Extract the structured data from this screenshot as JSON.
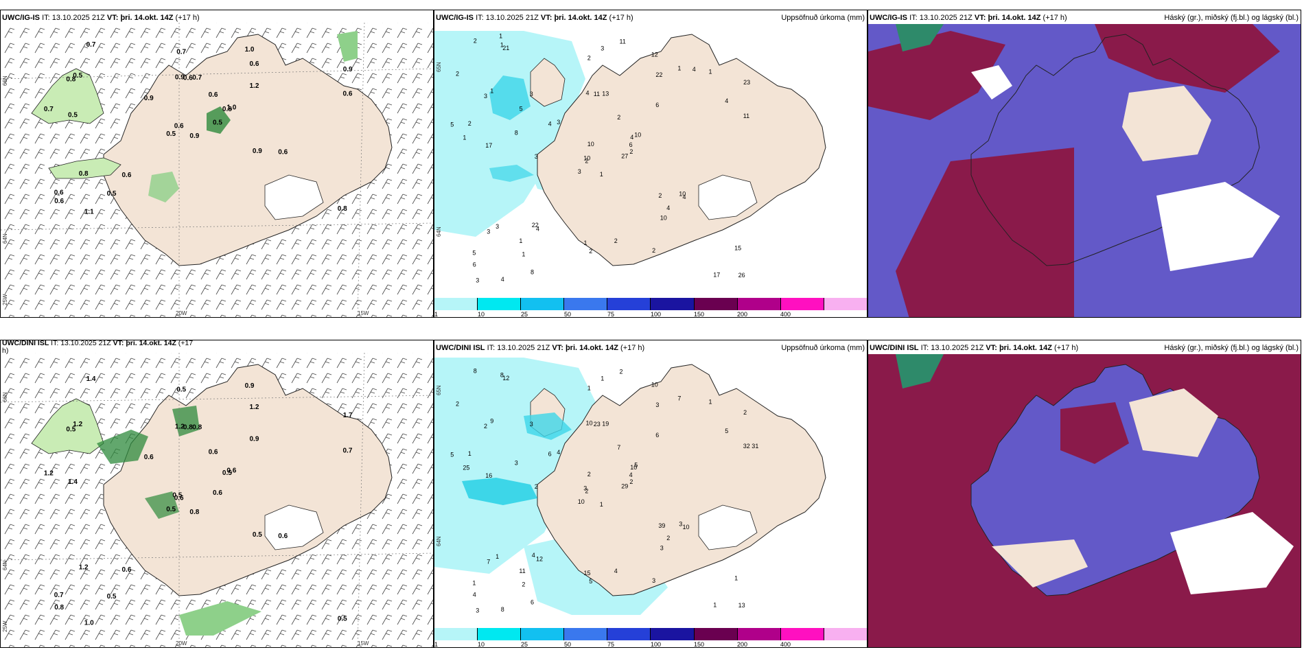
{
  "colors": {
    "land": "#f3e4d6",
    "ice": "#ffffff",
    "green_light": "#c9ecb5",
    "green_mid": "#8ed08a",
    "green_dark": "#2e8a3c",
    "precip_light": "#b6f5f8",
    "precip_mid": "#3dd6e8",
    "cloud_high": "#8a1a4a",
    "cloud_mid": "#6359c8",
    "cloud_low": "#d0405a"
  },
  "panels": {
    "p1": {
      "model": "UWC/IG-IS",
      "it_label": "IT:",
      "it": "13.10.2025 21Z",
      "vt_label": "VT:",
      "vt": "þri. 14.okt. 14Z",
      "lead": "(+17 h)"
    },
    "p2": {
      "model": "UWC/IG-IS",
      "it_label": "IT:",
      "it": "13.10.2025 21Z",
      "vt_label": "VT:",
      "vt": "þri. 14.okt. 14Z",
      "lead": "(+17 h)",
      "field": "Uppsöfnuð úrkoma (mm)"
    },
    "p3": {
      "model": "UWC/IG-IS",
      "it_label": "IT:",
      "it": "13.10.2025 21Z",
      "vt_label": "VT:",
      "vt": "þri. 14.okt. 14Z",
      "lead": "(+17 h)",
      "field": "Háský (gr.), miðský (fj.bl.) og lágský (bl.)"
    },
    "p4": {
      "model": "UWC/DINI ISL",
      "it_label": "IT:",
      "it": "13.10.2025 21Z",
      "vt_label": "VT:",
      "vt": "þri. 14.okt. 14Z",
      "lead": "(+17",
      "lead2": "h)"
    },
    "p5": {
      "model": "UWC/DINI ISL",
      "it_label": "IT:",
      "it": "13.10.2025 21Z",
      "vt_label": "VT:",
      "vt": "þri. 14.okt. 14Z",
      "lead": "(+17 h)",
      "field": "Uppsöfnuð úrkoma (mm)"
    },
    "p6": {
      "model": "UWC/DINI ISL",
      "it_label": "IT:",
      "it": "13.10.2025 21Z",
      "vt_label": "VT:",
      "vt": "þri. 14.okt. 14Z",
      "lead": "(+17 h)",
      "field": "Háský (gr.), miðský (fj.bl.) og lágský (bl.)"
    }
  },
  "axis_labels": {
    "lat_top": "66N",
    "lat_bottom": "64N",
    "lat_top_p4": "66N",
    "lat_bottom_p4": "64N",
    "lon_left": "25W",
    "lon_mid": "20W",
    "lon_right": "15W",
    "lat_p2": "65N",
    "lat_p2b": "64N"
  },
  "colorbar": {
    "ticks": [
      "1",
      "10",
      "25",
      "50",
      "75",
      "100",
      "150",
      "200",
      "400"
    ],
    "colors": [
      "#b6f5f8",
      "#00e8f0",
      "#12c0f0",
      "#3a78ee",
      "#2540d8",
      "#1a14a0",
      "#6a0050",
      "#b0008a",
      "#ff10c0",
      "#f8b0f0"
    ]
  },
  "precip_values_top": [
    "1",
    "3",
    "2",
    "5",
    "4",
    "4",
    "12",
    "13",
    "22",
    "27",
    "21",
    "26",
    "17",
    "23",
    "3",
    "6",
    "4",
    "4",
    "2",
    "3",
    "3",
    "6",
    "1",
    "11",
    "10",
    "4",
    "1",
    "2",
    "1",
    "2",
    "11",
    "10",
    "1",
    "10",
    "3",
    "1",
    "22",
    "17",
    "15",
    "10",
    "11",
    "4",
    "8",
    "10",
    "8",
    "5",
    "6",
    "3",
    "2",
    "2",
    "3",
    "4",
    "2",
    "4",
    "2",
    "1",
    "1",
    "2",
    "2",
    "1",
    "3",
    "3",
    "2",
    "5",
    "4",
    "1"
  ],
  "precip_values_bottom": [
    "1",
    "2",
    "2",
    "1",
    "10",
    "12",
    "10",
    "19",
    "3",
    "29",
    "12",
    "13",
    "16",
    "2",
    "10",
    "6",
    "8",
    "10",
    "7",
    "1",
    "4",
    "4",
    "2",
    "23",
    "5",
    "10",
    "9",
    "1",
    "25",
    "39",
    "32 31",
    "3",
    "15",
    "2",
    "3",
    "7",
    "4",
    "1",
    "1",
    "3",
    "2",
    "6",
    "3",
    "3",
    "6",
    "5",
    "4",
    "3",
    "5",
    "2",
    "7",
    "5",
    "2",
    "2",
    "3",
    "11",
    "8",
    "8",
    "4",
    "1",
    "1",
    "2",
    "1"
  ],
  "wind_values_top": [
    "0.9",
    "0.8",
    "0.6",
    "0.6",
    "0.8",
    "0.6",
    "1.0",
    "0.7",
    "0.6",
    "0.5",
    "0.7",
    "0.8",
    "0.5",
    "0.9",
    "0.5",
    "1.2",
    "1.1",
    "0.9",
    "0.6",
    "0.8",
    "0.9",
    "0.6",
    "0.5",
    "0.6",
    "1.0",
    "0.6",
    "0.5",
    "0.7",
    "0.7",
    "0.9",
    "0.6"
  ],
  "wind_values_bottom": [
    "0.8",
    "0.5",
    "0.6",
    "0.7",
    "0.5",
    "0.6",
    "0.9",
    "0.8",
    "1.2",
    "0.6",
    "1.4",
    "0.5",
    "1.4",
    "1.7",
    "0.5",
    "0.9",
    "1.0",
    "1.2",
    "0.6",
    "1.2",
    "0.6",
    "0.8",
    "0.5",
    "0.8",
    "0.6",
    "0.6",
    "1.2",
    "0.5",
    "1.2",
    "0.5",
    "0.7",
    "0.5"
  ]
}
